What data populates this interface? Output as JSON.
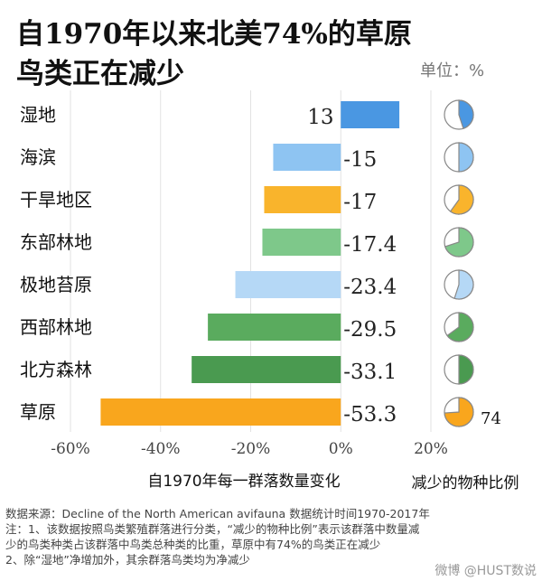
{
  "chart_data": {
    "type": "bar",
    "title_lines": [
      "自1970年以来北美74%的草原",
      "鸟类正在减少"
    ],
    "unit_label": "单位：%",
    "categories": [
      "湿地",
      "海滨",
      "干旱地区",
      "东部林地",
      "极地苔原",
      "西部林地",
      "北方森林",
      "草原"
    ],
    "values": [
      13,
      -15,
      -17,
      -17.4,
      -23.4,
      -29.5,
      -33.1,
      -53.3
    ],
    "value_labels": [
      "13",
      "-15",
      "-17",
      "-17.4",
      "-23.4",
      "-29.5",
      "-33.1",
      "-53.3"
    ],
    "colors": [
      "#4a97e2",
      "#8ec4f2",
      "#f9b42c",
      "#7ec88a",
      "#b5d8f6",
      "#5aab5e",
      "#4a9a50",
      "#f9a61d"
    ],
    "declining_species_share": [
      45,
      50,
      60,
      70,
      55,
      65,
      50,
      74
    ],
    "share_label_shown": "74",
    "xlim": [
      -60,
      20
    ],
    "xticks": [
      -60,
      -40,
      -20,
      0,
      20
    ],
    "xtick_labels": [
      "-60%",
      "-40%",
      "-20%",
      "0%",
      "20%"
    ],
    "xlabel": "自1970年每一群落数量变化",
    "pie_label": "减少的物种比例",
    "grid": true
  },
  "footer": {
    "line1": "数据来源：Decline of the North American avifauna      数据统计时间1970-2017年",
    "line2": "注：1、该数据按照鸟类繁殖群落进行分类，“减少的物种比例”表示该群落中数量减",
    "line3": "少的鸟类种类占该群落中鸟类总种类的比重，草原中有74%的鸟类正在减少",
    "line4": "2、除“湿地”净增加外，其余群落鸟类均为净减少"
  },
  "watermark": "微博 @HUST数说"
}
